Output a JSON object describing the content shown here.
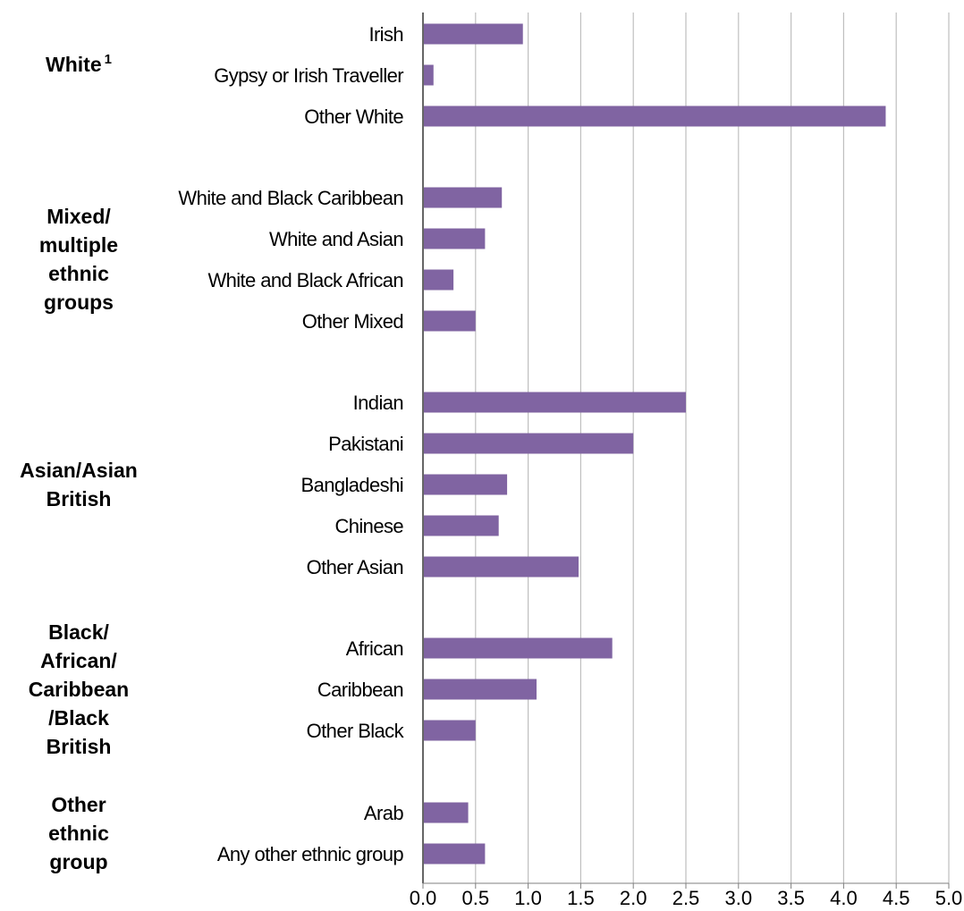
{
  "chart_data": {
    "type": "bar",
    "orientation": "horizontal",
    "title": "",
    "xlabel": "",
    "ylabel": "",
    "xlim": [
      0,
      5
    ],
    "xticks": [
      "0.0",
      "0.5",
      "1.0",
      "1.5",
      "2.0",
      "2.5",
      "3.0",
      "3.5",
      "4.0",
      "4.5",
      "5.0"
    ],
    "grid": "vertical",
    "bar_color": "#8064a2",
    "groups": [
      {
        "label": "White",
        "superscript": "1",
        "categories": [
          {
            "label": "Irish",
            "value": 0.95
          },
          {
            "label": "Gypsy or Irish Traveller",
            "value": 0.1
          },
          {
            "label": "Other White",
            "value": 4.4
          }
        ]
      },
      {
        "label_lines": [
          "Mixed/",
          "multiple",
          "ethnic",
          "groups"
        ],
        "categories": [
          {
            "label": "White and Black Caribbean",
            "value": 0.75
          },
          {
            "label": "White and Asian",
            "value": 0.59
          },
          {
            "label": "White and Black African",
            "value": 0.29
          },
          {
            "label": "Other Mixed",
            "value": 0.5
          }
        ]
      },
      {
        "label_lines": [
          "Asian/Asian",
          "British"
        ],
        "categories": [
          {
            "label": "Indian",
            "value": 2.5
          },
          {
            "label": "Pakistani",
            "value": 2.0
          },
          {
            "label": "Bangladeshi",
            "value": 0.8
          },
          {
            "label": "Chinese",
            "value": 0.72
          },
          {
            "label": "Other Asian",
            "value": 1.48
          }
        ]
      },
      {
        "label_lines": [
          "Black/",
          "African/",
          "Caribbean",
          "/Black",
          "British"
        ],
        "categories": [
          {
            "label": "African",
            "value": 1.8
          },
          {
            "label": "Caribbean",
            "value": 1.08
          },
          {
            "label": "Other Black",
            "value": 0.5
          }
        ]
      },
      {
        "label_lines": [
          "Other",
          "ethnic",
          "group"
        ],
        "categories": [
          {
            "label": "Arab",
            "value": 0.43
          },
          {
            "label": "Any other ethnic group",
            "value": 0.59
          }
        ]
      }
    ]
  }
}
